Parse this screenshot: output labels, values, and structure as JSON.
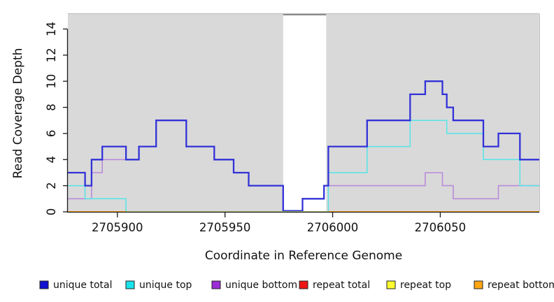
{
  "chart_data": {
    "type": "line",
    "line_style": "step",
    "xlabel": "Coordinate in Reference Genome",
    "ylabel": "Read Coverage Depth",
    "xlim": [
      2705877,
      2706096
    ],
    "ylim": [
      0,
      15.15
    ],
    "grid": false,
    "plot_bg": "#d9d9d9",
    "x_ticks": [
      {
        "value": 2705900,
        "label": "2705900"
      },
      {
        "value": 2705950,
        "label": "2705950"
      },
      {
        "value": 2706000,
        "label": "2706000"
      },
      {
        "value": 2706050,
        "label": "2706050"
      }
    ],
    "y_ticks": [
      {
        "value": 0,
        "label": "0"
      },
      {
        "value": 2,
        "label": "2"
      },
      {
        "value": 4,
        "label": "4"
      },
      {
        "value": 6,
        "label": "6"
      },
      {
        "value": 8,
        "label": "8"
      },
      {
        "value": 10,
        "label": "10"
      },
      {
        "value": 12,
        "label": "12"
      },
      {
        "value": 14,
        "label": "14"
      }
    ],
    "highlight_band": {
      "x_start": 2705977,
      "x_end": 2705997,
      "fill": "#ffffff",
      "top_border": "#8a8a8a"
    },
    "series": [
      {
        "name": "unique bottom",
        "line_color": "#b98bd9",
        "width": 1.6,
        "zero_lift": 0,
        "points": [
          [
            2705877,
            1
          ],
          [
            2705888,
            3
          ],
          [
            2705893,
            4
          ],
          [
            2705910,
            5
          ],
          [
            2705918,
            7
          ],
          [
            2705932,
            5
          ],
          [
            2705945,
            4
          ],
          [
            2705954,
            3
          ],
          [
            2705961,
            2
          ],
          [
            2705977,
            0
          ],
          [
            2705986,
            1
          ],
          [
            2705996,
            2
          ],
          [
            2706043,
            3
          ],
          [
            2706051,
            2
          ],
          [
            2706056,
            1
          ],
          [
            2706077,
            2
          ]
        ]
      },
      {
        "name": "unique top",
        "line_color": "#55e4e8",
        "width": 1.5,
        "zero_lift": 0,
        "points": [
          [
            2705877,
            2
          ],
          [
            2705885,
            1
          ],
          [
            2705904,
            0
          ],
          [
            2705998,
            3
          ],
          [
            2706016,
            5
          ],
          [
            2706036,
            7
          ],
          [
            2706053,
            6
          ],
          [
            2706070,
            4
          ],
          [
            2706087,
            2
          ]
        ]
      },
      {
        "name": "unique total",
        "line_color": "#3232d8",
        "width": 2.3,
        "zero_lift": 1.4,
        "points": [
          [
            2705877,
            3
          ],
          [
            2705885,
            2
          ],
          [
            2705888,
            4
          ],
          [
            2705893,
            5
          ],
          [
            2705904,
            4
          ],
          [
            2705910,
            5
          ],
          [
            2705918,
            7
          ],
          [
            2705932,
            5
          ],
          [
            2705945,
            4
          ],
          [
            2705954,
            3
          ],
          [
            2705961,
            2
          ],
          [
            2705977,
            0
          ],
          [
            2705986,
            1
          ],
          [
            2705996,
            2
          ],
          [
            2705998,
            5
          ],
          [
            2706016,
            7
          ],
          [
            2706036,
            9
          ],
          [
            2706043,
            10
          ],
          [
            2706051,
            9
          ],
          [
            2706053,
            8
          ],
          [
            2706056,
            7
          ],
          [
            2706070,
            5
          ],
          [
            2706077,
            6
          ],
          [
            2706087,
            4
          ]
        ]
      },
      {
        "name": "repeat total",
        "line_color": "#ed1414",
        "width": 1.5,
        "zero_lift": 0,
        "points": [
          [
            2705877,
            0
          ]
        ]
      },
      {
        "name": "repeat top",
        "line_color": "#fcfc30",
        "width": 1.5,
        "zero_lift": 0,
        "points": [
          [
            2705877,
            0
          ]
        ]
      },
      {
        "name": "repeat bottom",
        "line_color": "#ff9e06",
        "width": 1.8,
        "zero_lift": 0,
        "points": [
          [
            2705877,
            0
          ]
        ]
      }
    ],
    "zero_overlap_segment": {
      "x_start": 2705904,
      "x_end": 2705998,
      "color": "#95d795",
      "width": 1.6
    },
    "legend": [
      {
        "label": "unique total",
        "fill": "#1212d0"
      },
      {
        "label": "unique top",
        "fill": "#18e3ea"
      },
      {
        "label": "unique bottom",
        "fill": "#9d2bd6"
      },
      {
        "label": "repeat total",
        "fill": "#ee1414"
      },
      {
        "label": "repeat top",
        "fill": "#fcfc30"
      },
      {
        "label": "repeat bottom",
        "fill": "#ffa513"
      }
    ]
  }
}
